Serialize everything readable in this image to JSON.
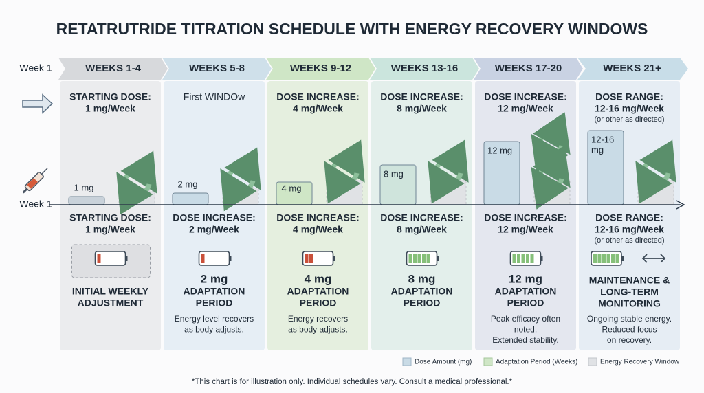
{
  "title": "RETATRUTRIDE TITRATION SCHEDULE WITH ENERGY RECOVERY WINDOWS",
  "row_labels": {
    "top": "Week 1",
    "timeline": "Week 1"
  },
  "columns": [
    {
      "header": "WEEKS 1-4",
      "top_lines": [
        "STARTING DOSE:",
        "1 mg/Week"
      ],
      "bar_label": [
        "1 mg"
      ],
      "bottom_lines": [
        "STARTING DOSE:",
        "1 mg/Week"
      ],
      "period": [
        "INITIAL WEEKLY",
        "ADJUSTMENT"
      ]
    },
    {
      "header": "WEEKS 5-8",
      "top_lines": [
        "First WINDOw"
      ],
      "bar_label": [
        "2 mg"
      ],
      "bottom_lines": [
        "DOSE INCREASE:",
        "2 mg/Week"
      ],
      "amount": "2 mg",
      "period": [
        "ADAPTATION",
        "PERIOD"
      ],
      "notes": [
        "Energy level recovers",
        "as body adjusts."
      ]
    },
    {
      "header": "WEEKS 9-12",
      "top_lines": [
        "DOSE INCREASE:",
        "4 mg/Week"
      ],
      "bar_label": [
        "4 mg"
      ],
      "bottom_lines": [
        "DOSE INCREASE:",
        "4 mg/Week"
      ],
      "amount": "4 mg",
      "period": [
        "ADAPTATION",
        "PERIOD"
      ],
      "notes": [
        "Energy recovers",
        "as body adjusts."
      ]
    },
    {
      "header": "WEEKS 13-16",
      "top_lines": [
        "DOSE INCREASE:",
        "8 mg/Week"
      ],
      "bar_label": [
        "8 mg"
      ],
      "bottom_lines": [
        "DOSE INCREASE:",
        "8 mg/Week"
      ],
      "amount": "8 mg",
      "period": [
        "ADAPTATION",
        "PERIOD"
      ]
    },
    {
      "header": "WEEKS 17-20",
      "top_lines": [
        "DOSE INCREASE:",
        "12 mg/Week"
      ],
      "bar_label": [
        "12 mg"
      ],
      "bottom_lines": [
        "DOSE INCREASE:",
        "12 mg/Week"
      ],
      "amount": "12 mg",
      "period": [
        "ADAPTATION",
        "PERIOD"
      ],
      "notes": [
        "Peak efficacy often",
        "noted.",
        "Extended stability."
      ]
    },
    {
      "header": "WEEKS 21+",
      "top_lines": [
        "DOSE RANGE:",
        "12-16 mg/Week",
        "(or other as directed)"
      ],
      "bar_label": [
        "12-16",
        "mg"
      ],
      "bottom_lines": [
        "DOSE RANGE:",
        "12-16 mg/Week",
        "(or other as directed)"
      ],
      "period": [
        "MAINTENANCE &",
        "LONG-TERM",
        "MONITORING"
      ],
      "notes": [
        "Ongoing stable energy.",
        "Reduced focus",
        "on recovery."
      ]
    }
  ],
  "legend": [
    "Dose Amount (mg)",
    "Adaptation Period (Weeks)",
    "Energy Recovery Window"
  ],
  "footnote": "*This chart is for illustration only. Individual schedules vary. Consult a medical professional.*"
}
